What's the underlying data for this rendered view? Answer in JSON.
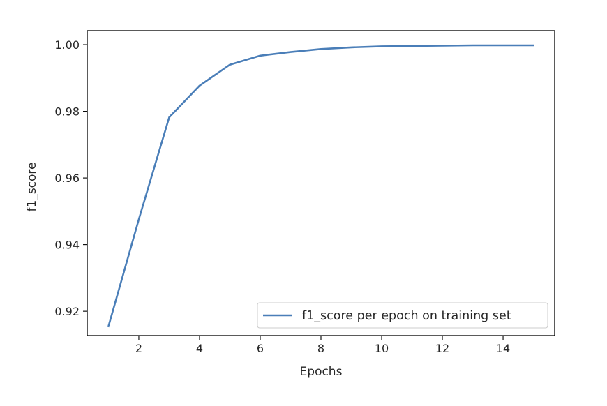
{
  "chart_data": {
    "type": "line",
    "title": "",
    "xlabel": "Epochs",
    "ylabel": "f1_score",
    "xlim": [
      0.3,
      15.7
    ],
    "ylim": [
      0.9127,
      1.0042
    ],
    "xticks": [
      2,
      4,
      6,
      8,
      10,
      12,
      14
    ],
    "yticks": [
      0.92,
      0.94,
      0.96,
      0.98,
      1.0
    ],
    "ytick_labels": [
      "0.92",
      "0.94",
      "0.96",
      "0.98",
      "1.00"
    ],
    "grid": false,
    "legend_position": "lower-right",
    "series": [
      {
        "name": "f1_score per epoch on training set",
        "color": "#4a7eb8",
        "x": [
          1,
          2,
          3,
          4,
          5,
          6,
          7,
          8,
          9,
          10,
          11,
          12,
          13,
          14,
          15
        ],
        "y": [
          0.9155,
          0.9476,
          0.9782,
          0.9877,
          0.994,
          0.9967,
          0.9978,
          0.9987,
          0.9992,
          0.9995,
          0.9996,
          0.9997,
          0.9998,
          0.9998,
          0.9998
        ]
      }
    ]
  }
}
